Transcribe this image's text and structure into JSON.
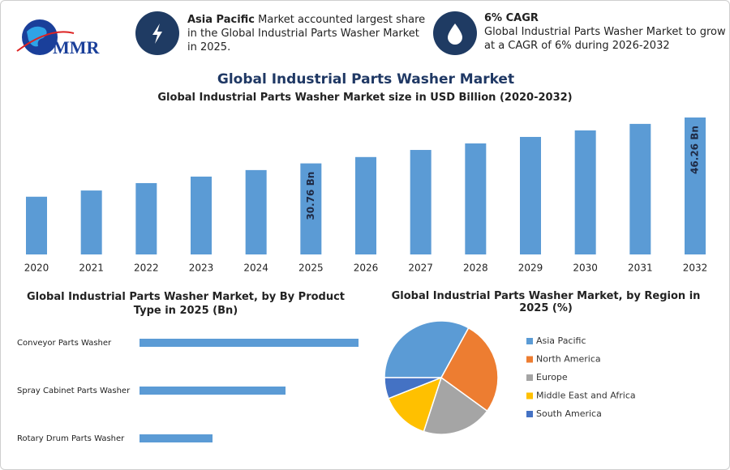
{
  "header": {
    "logo": "MMR",
    "box1": {
      "highlight": "Asia Pacific",
      "text": "Market accounted largest share in the Global Industrial Parts Washer Market in 2025."
    },
    "box2": {
      "title": "6% CAGR",
      "text": "Global Industrial Parts Washer Market to grow at a CAGR of 6% during 2026-2032"
    },
    "title": "Global Industrial Parts Washer Market"
  },
  "chart_data": [
    {
      "type": "bar",
      "title": "Global Industrial Parts Washer Market size in USD Billion (2020-2032)",
      "categories": [
        "2020",
        "2021",
        "2022",
        "2023",
        "2024",
        "2025",
        "2026",
        "2027",
        "2028",
        "2029",
        "2030",
        "2031",
        "2032"
      ],
      "values": [
        19.5,
        21.6,
        24.1,
        26.3,
        28.5,
        30.76,
        32.9,
        35.3,
        37.5,
        39.7,
        41.9,
        44.1,
        46.26
      ],
      "value_labels": [
        null,
        null,
        null,
        null,
        null,
        "30.76 Bn",
        null,
        null,
        null,
        null,
        null,
        null,
        "46.26 Bn"
      ],
      "color": "#5b9bd5"
    },
    {
      "type": "barh",
      "title": "Global Industrial Parts Washer Market, by By Product Type in 2025 (Bn)",
      "categories": [
        "Conveyor Parts Washer",
        "Spray Cabinet Parts Washer",
        "Rotary Drum Parts Washer"
      ],
      "values": [
        15,
        10,
        5
      ],
      "color": "#5b9bd5"
    },
    {
      "type": "pie",
      "title": "Global Industrial Parts Washer Market, by Region in 2025 (%)",
      "categories": [
        "Asia Pacific",
        "North America",
        "Europe",
        "Middle East and Africa",
        "South America"
      ],
      "values": [
        33,
        27,
        20,
        14,
        6
      ],
      "colors": [
        "#5b9bd5",
        "#ed7d31",
        "#a5a5a5",
        "#ffc000",
        "#4472c4"
      ],
      "legend": "right"
    }
  ]
}
